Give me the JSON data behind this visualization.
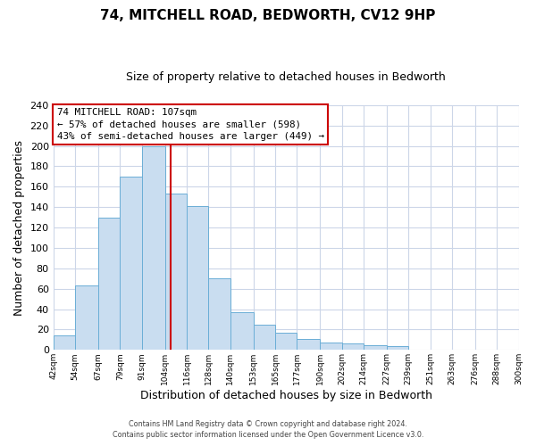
{
  "title": "74, MITCHELL ROAD, BEDWORTH, CV12 9HP",
  "subtitle": "Size of property relative to detached houses in Bedworth",
  "xlabel": "Distribution of detached houses by size in Bedworth",
  "ylabel": "Number of detached properties",
  "bin_edges": [
    42,
    54,
    67,
    79,
    91,
    104,
    116,
    128,
    140,
    153,
    165,
    177,
    190,
    202,
    214,
    227,
    239,
    251,
    263,
    276,
    288
  ],
  "bar_heights": [
    14,
    63,
    130,
    170,
    200,
    153,
    141,
    70,
    37,
    25,
    17,
    11,
    7,
    6,
    5,
    4,
    0,
    0,
    0,
    0
  ],
  "bar_color": "#c9ddf0",
  "bar_edge_color": "#6baed6",
  "vline_x": 107,
  "vline_color": "#cc0000",
  "ylim": [
    0,
    240
  ],
  "yticks": [
    0,
    20,
    40,
    60,
    80,
    100,
    120,
    140,
    160,
    180,
    200,
    220,
    240
  ],
  "annotation_line1": "74 MITCHELL ROAD: 107sqm",
  "annotation_line2": "← 57% of detached houses are smaller (598)",
  "annotation_line3": "43% of semi-detached houses are larger (449) →",
  "annotation_box_color": "#ffffff",
  "annotation_box_edge_color": "#cc0000",
  "footer_line1": "Contains HM Land Registry data © Crown copyright and database right 2024.",
  "footer_line2": "Contains public sector information licensed under the Open Government Licence v3.0.",
  "background_color": "#ffffff",
  "grid_color": "#ccd6e8"
}
